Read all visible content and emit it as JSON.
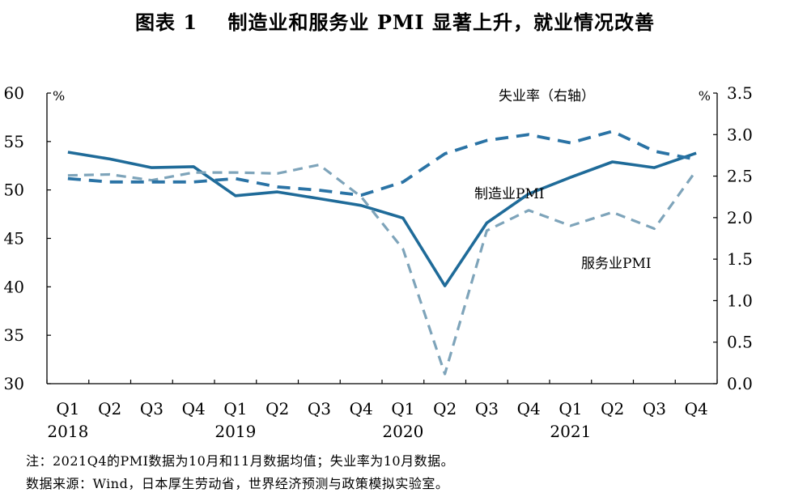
{
  "title": "图表 1    制造业和服务业 PMI 显著上升，就业情况改善",
  "notes": {
    "line1": "注：2021Q4的PMI数据为10月和11月数据均值；失业率为10月数据。",
    "line2": "数据来源：Wind，日本厚生劳动省，世界经济预测与政策模拟实验室。"
  },
  "colors": {
    "manufacturing": "#1f6b99",
    "services": "#7ea4ba",
    "unemployment": "#2a73a5",
    "axis": "#000000"
  },
  "chart_data": {
    "type": "line",
    "title": "制造业和服务业 PMI 显著上升，就业情况改善",
    "categories": [
      "Q1",
      "Q2",
      "Q3",
      "Q4",
      "Q1",
      "Q2",
      "Q3",
      "Q4",
      "Q1",
      "Q2",
      "Q3",
      "Q4",
      "Q1",
      "Q2",
      "Q3",
      "Q4"
    ],
    "years": [
      {
        "label": "2018",
        "start_index": 0
      },
      {
        "label": "2019",
        "start_index": 4
      },
      {
        "label": "2020",
        "start_index": 8
      },
      {
        "label": "2021",
        "start_index": 12
      }
    ],
    "left_axis": {
      "unit": "%",
      "ylim": [
        30,
        60
      ],
      "ticks": [
        30,
        35,
        40,
        45,
        50,
        55,
        60
      ]
    },
    "right_axis": {
      "unit": "%",
      "ylim": [
        0,
        3.5
      ],
      "ticks": [
        "0.0",
        "0.5",
        "1.0",
        "1.5",
        "2.0",
        "2.5",
        "3.0",
        "3.5"
      ]
    },
    "series": [
      {
        "name": "制造业PMI",
        "axis": "left",
        "style": "solid",
        "values": [
          53.9,
          53.2,
          52.3,
          52.4,
          49.4,
          49.8,
          49.1,
          48.4,
          47.1,
          40.1,
          46.6,
          49.6,
          51.3,
          52.9,
          52.3,
          53.8
        ],
        "label": "制造业PMI"
      },
      {
        "name": "服务业PMI",
        "axis": "left",
        "style": "dashed",
        "values": [
          51.5,
          51.6,
          51.0,
          51.8,
          51.8,
          51.7,
          52.6,
          49.3,
          43.9,
          31.0,
          45.8,
          47.9,
          46.3,
          47.7,
          46.0,
          52.0
        ],
        "label": "服务业PMI"
      },
      {
        "name": "失业率（右轴）",
        "axis": "right",
        "style": "dashed",
        "values": [
          2.47,
          2.43,
          2.43,
          2.43,
          2.47,
          2.37,
          2.33,
          2.27,
          2.43,
          2.77,
          2.93,
          3.0,
          2.9,
          3.04,
          2.8,
          2.7
        ],
        "label": "失业率（右轴）"
      }
    ]
  }
}
